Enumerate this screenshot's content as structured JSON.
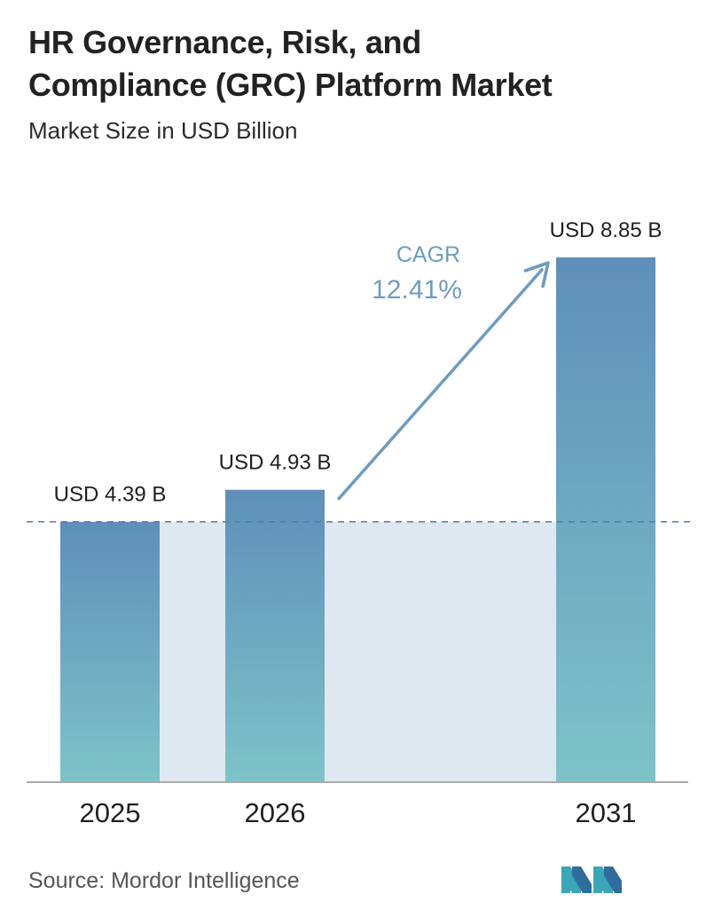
{
  "header": {
    "title_line1": "HR Governance, Risk, and",
    "title_line2": "Compliance (GRC) Platform Market",
    "subtitle": "Market Size in USD Billion"
  },
  "chart_data": {
    "type": "bar",
    "categories": [
      "2025",
      "2026",
      "2031"
    ],
    "values": [
      4.39,
      4.93,
      8.85
    ],
    "value_labels": [
      "USD 4.39 B",
      "USD 4.93 B",
      "USD 8.85 B"
    ],
    "title": "HR Governance, Risk, and Compliance (GRC) Platform Market",
    "subtitle": "Market Size in USD Billion",
    "xlabel": "",
    "ylabel": "",
    "ylim": [
      0,
      10
    ],
    "grid": false,
    "reference_line": {
      "value": 4.39,
      "style": "dashed"
    },
    "annotation": {
      "label": "CAGR",
      "value": "12.41%"
    },
    "colors": {
      "bar_top": "#5e8fba",
      "bar_bottom": "#7ec3c8",
      "band": "#dfe8f0",
      "cagr": "#6e9cc2",
      "dashed": "#4f7ea8",
      "axis": "#aaaaaa"
    }
  },
  "footer": {
    "source": "Source: Mordor Intelligence",
    "logo_icon": "mordor-intelligence-logo-icon"
  }
}
